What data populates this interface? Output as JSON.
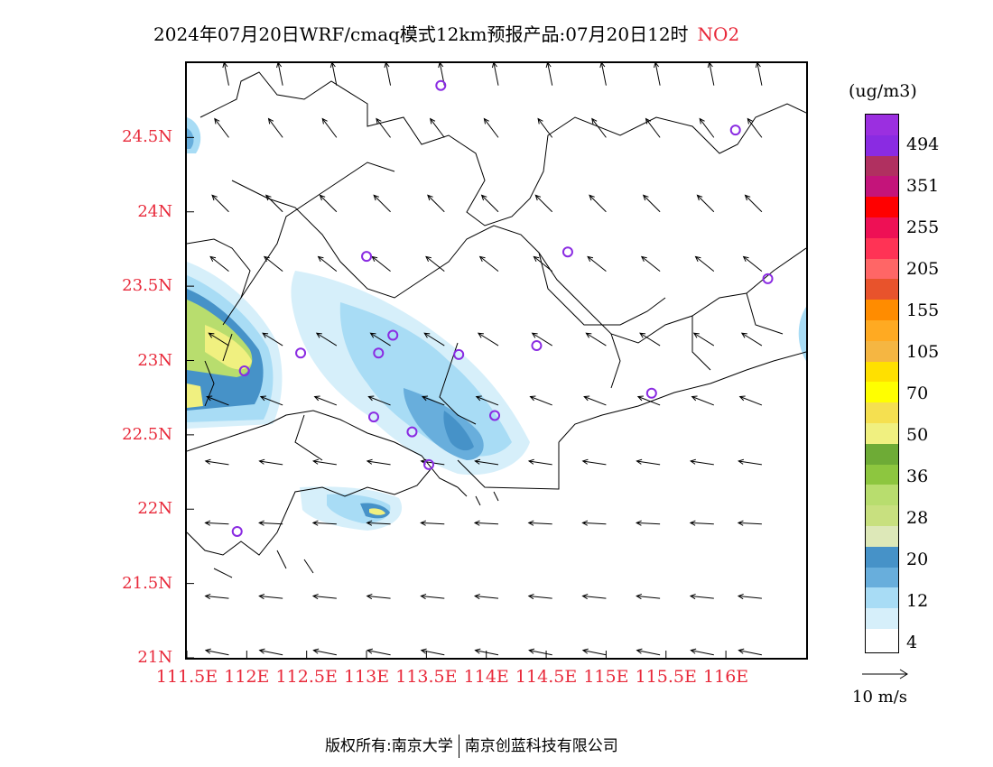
{
  "title": {
    "text": "2024年07月20日WRF/cmaq模式12km预报产品:07月20日12时",
    "pollutant": "NO2"
  },
  "map": {
    "lat_ticks": [
      "24.5N",
      "24N",
      "23.5N",
      "23N",
      "22.5N",
      "22N",
      "21.5N",
      "21N"
    ],
    "lat_values": [
      24.5,
      24.0,
      23.5,
      23.0,
      22.5,
      22.0,
      21.5,
      21.0
    ],
    "lon_ticks": [
      "111.5E",
      "112E",
      "112.5E",
      "113E",
      "113.5E",
      "114E",
      "114.5E",
      "115E",
      "115.5E",
      "116E"
    ],
    "lon_values": [
      111.5,
      112.0,
      112.5,
      113.0,
      113.5,
      114.0,
      114.5,
      115.0,
      115.5,
      116.0
    ],
    "lat_range": [
      21.0,
      25.0
    ],
    "lon_range": [
      111.5,
      116.67
    ],
    "stations": [
      [
        113.62,
        24.85
      ],
      [
        116.08,
        24.55
      ],
      [
        113.0,
        23.7
      ],
      [
        114.68,
        23.73
      ],
      [
        116.35,
        23.55
      ],
      [
        112.45,
        23.05
      ],
      [
        113.1,
        23.05
      ],
      [
        113.22,
        23.17
      ],
      [
        113.77,
        23.04
      ],
      [
        114.42,
        23.1
      ],
      [
        111.98,
        22.93
      ],
      [
        113.06,
        22.62
      ],
      [
        113.38,
        22.52
      ],
      [
        114.07,
        22.63
      ],
      [
        113.52,
        22.3
      ],
      [
        115.38,
        22.78
      ],
      [
        111.92,
        21.85
      ]
    ],
    "wind": {
      "rows": [
        {
          "lat": 24.85,
          "u": -0.2,
          "v": 1.0
        },
        {
          "lat": 24.5,
          "u": -0.6,
          "v": 0.8
        },
        {
          "lat": 24.0,
          "u": -0.7,
          "v": 0.7
        },
        {
          "lat": 23.6,
          "u": -0.75,
          "v": 0.6
        },
        {
          "lat": 23.1,
          "u": -0.8,
          "v": 0.5
        },
        {
          "lat": 22.7,
          "u": -0.9,
          "v": 0.35
        },
        {
          "lat": 22.3,
          "u": -1.0,
          "v": 0.15
        },
        {
          "lat": 21.9,
          "u": -1.0,
          "v": 0.05
        },
        {
          "lat": 21.4,
          "u": -1.0,
          "v": 0.1
        },
        {
          "lat": 21.02,
          "u": -1.0,
          "v": 0.2
        }
      ],
      "cols": [
        111.85,
        112.3,
        112.75,
        113.2,
        113.65,
        114.1,
        114.55,
        115.0,
        115.45,
        115.9,
        116.3
      ]
    }
  },
  "colorbar": {
    "unit": "(ug/m3)",
    "colors": [
      "#9b2fe0",
      "#8a2be2",
      "#b03060",
      "#c4147a",
      "#ff0000",
      "#ee1055",
      "#ff3355",
      "#ff6666",
      "#e8532c",
      "#ff8c00",
      "#ffaa22",
      "#f5b642",
      "#ffe000",
      "#ffff00",
      "#f5e050",
      "#f0f080",
      "#6eab36",
      "#8dc63f",
      "#b8dd6e",
      "#c8e07f",
      "#dde8b8",
      "#4692c8",
      "#68aedc",
      "#a8dcf5",
      "#d6effa",
      "#ffffff"
    ],
    "labels": [
      "494",
      "351",
      "255",
      "205",
      "155",
      "105",
      "70",
      "50",
      "36",
      "28",
      "20",
      "12",
      "4"
    ],
    "label_indices": [
      1,
      3,
      5,
      7,
      9,
      11,
      13,
      15,
      17,
      19,
      21,
      23,
      25
    ],
    "wind_label": "10  m/s"
  },
  "footer": {
    "left": "版权所有:南京大学",
    "right": "南京创蓝科技有限公司"
  }
}
